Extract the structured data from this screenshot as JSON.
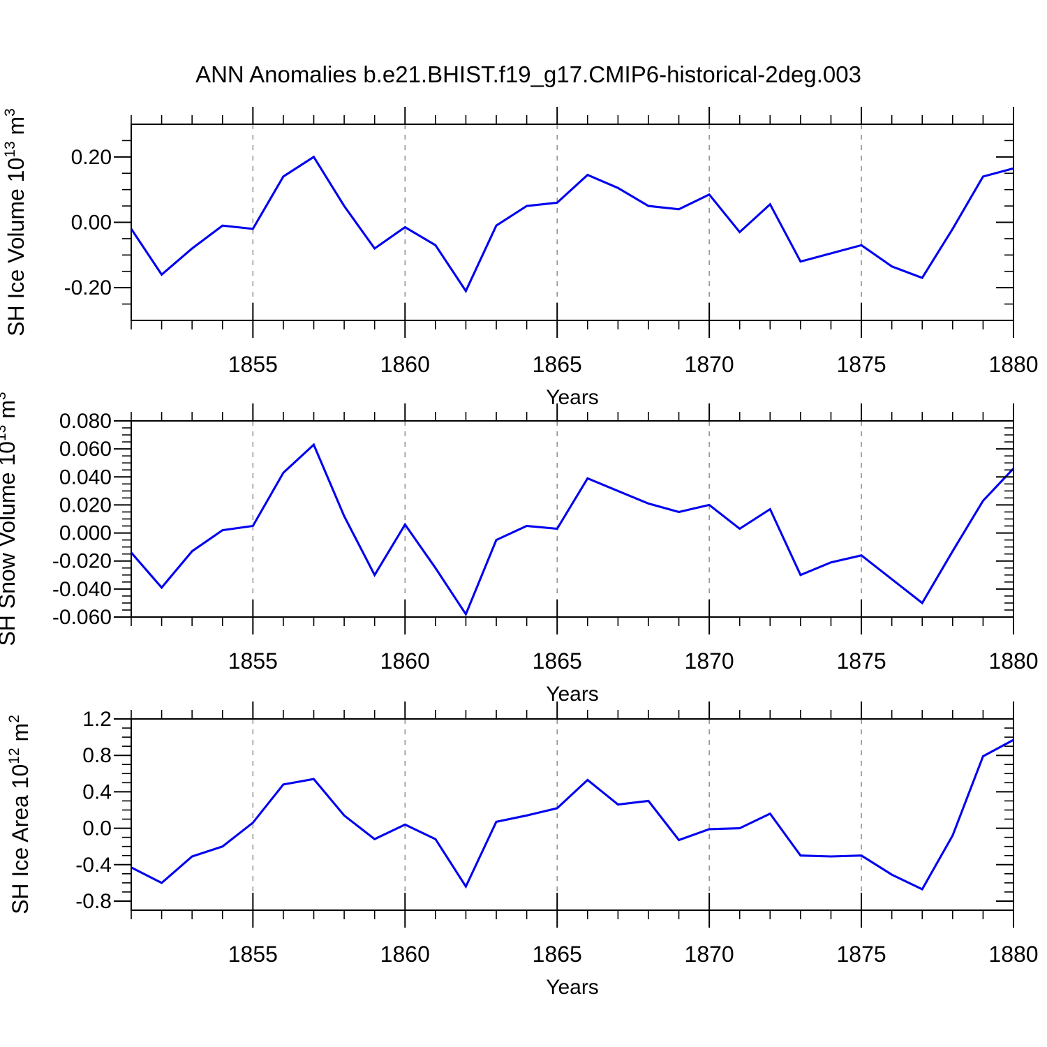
{
  "title": "ANN Anomalies b.e21.BHIST.f19_g17.CMIP6-historical-2deg.003",
  "colors": {
    "line": "#0000f0",
    "frame": "#000000",
    "grid": "#858585",
    "text": "#000000",
    "background": "#ffffff"
  },
  "x_axis": {
    "label": "Years",
    "years_start": 1851,
    "years_end": 1880,
    "tick_labels": [
      "1855",
      "1860",
      "1865",
      "1870",
      "1875",
      "1880"
    ],
    "tick_values": [
      1855,
      1860,
      1865,
      1870,
      1875,
      1880
    ],
    "grid_years": [
      1855,
      1860,
      1865,
      1870,
      1875
    ],
    "minor_step": 1
  },
  "chart_data": [
    {
      "type": "line",
      "name": "sh-ice-volume",
      "legend": "none",
      "grid": "vertical-dashed",
      "ylabel_full": "SH Ice Volume 10^13 m^3",
      "ylabel": {
        "prefix": "SH Ice Volume 10",
        "exponent": "13",
        "unit": " m",
        "unit_exponent": "3"
      },
      "xlabel": "Years",
      "ylim": [
        -0.3,
        0.3
      ],
      "ytick_labels": [
        "0.20",
        "0.00",
        "-0.20"
      ],
      "ytick_values": [
        0.2,
        0.0,
        -0.2
      ],
      "yminor_step": 0.05,
      "x": [
        1851,
        1852,
        1853,
        1854,
        1855,
        1856,
        1857,
        1858,
        1859,
        1860,
        1861,
        1862,
        1863,
        1864,
        1865,
        1866,
        1867,
        1868,
        1869,
        1870,
        1871,
        1872,
        1873,
        1874,
        1875,
        1876,
        1877,
        1878,
        1879,
        1880
      ],
      "values": [
        -0.02,
        -0.16,
        -0.08,
        -0.01,
        -0.02,
        0.14,
        0.2,
        0.05,
        -0.08,
        -0.015,
        -0.07,
        -0.21,
        -0.01,
        0.05,
        0.06,
        0.145,
        0.105,
        0.05,
        0.04,
        0.085,
        -0.03,
        0.055,
        -0.12,
        -0.095,
        -0.07,
        -0.135,
        -0.17,
        -0.02,
        0.14,
        0.165
      ]
    },
    {
      "type": "line",
      "name": "sh-snow-volume",
      "legend": "none",
      "grid": "vertical-dashed",
      "ylabel_full": "SH Snow Volume 10^13 m^3",
      "ylabel": {
        "prefix": "SH Snow Volume 10",
        "exponent": "13",
        "unit": " m",
        "unit_exponent": "3"
      },
      "xlabel": "Years",
      "ylim": [
        -0.06,
        0.08
      ],
      "ytick_labels": [
        "0.080",
        "0.060",
        "0.040",
        "0.020",
        "0.000",
        "-0.020",
        "-0.040",
        "-0.060"
      ],
      "ytick_values": [
        0.08,
        0.06,
        0.04,
        0.02,
        0.0,
        -0.02,
        -0.04,
        -0.06
      ],
      "yminor_step": 0.005,
      "x": [
        1851,
        1852,
        1853,
        1854,
        1855,
        1856,
        1857,
        1858,
        1859,
        1860,
        1861,
        1862,
        1863,
        1864,
        1865,
        1866,
        1867,
        1868,
        1869,
        1870,
        1871,
        1872,
        1873,
        1874,
        1875,
        1876,
        1877,
        1878,
        1879,
        1880
      ],
      "values": [
        -0.014,
        -0.039,
        -0.013,
        0.002,
        0.005,
        0.043,
        0.063,
        0.012,
        -0.03,
        0.006,
        -0.025,
        -0.058,
        -0.005,
        0.005,
        0.003,
        0.039,
        0.03,
        0.021,
        0.015,
        0.02,
        0.003,
        0.017,
        -0.03,
        -0.021,
        -0.016,
        -0.033,
        -0.05,
        -0.013,
        0.023,
        0.046
      ]
    },
    {
      "type": "line",
      "name": "sh-ice-area",
      "legend": "none",
      "grid": "vertical-dashed",
      "ylabel_full": "SH Ice Area 10^12 m^2",
      "ylabel": {
        "prefix": "SH Ice Area 10",
        "exponent": "12",
        "unit": " m",
        "unit_exponent": "2"
      },
      "xlabel": "Years",
      "ylim": [
        -0.9,
        1.2
      ],
      "ytick_labels": [
        "1.2",
        "0.8",
        "0.4",
        "0.0",
        "-0.4",
        "-0.8"
      ],
      "ytick_values": [
        1.2,
        0.8,
        0.4,
        0.0,
        -0.4,
        -0.8
      ],
      "yminor_step": 0.1,
      "x": [
        1851,
        1852,
        1853,
        1854,
        1855,
        1856,
        1857,
        1858,
        1859,
        1860,
        1861,
        1862,
        1863,
        1864,
        1865,
        1866,
        1867,
        1868,
        1869,
        1870,
        1871,
        1872,
        1873,
        1874,
        1875,
        1876,
        1877,
        1878,
        1879,
        1880
      ],
      "values": [
        -0.43,
        -0.6,
        -0.31,
        -0.2,
        0.06,
        0.48,
        0.54,
        0.14,
        -0.12,
        0.04,
        -0.12,
        -0.64,
        0.07,
        0.14,
        0.22,
        0.53,
        0.26,
        0.3,
        -0.13,
        -0.01,
        0.0,
        0.16,
        -0.3,
        -0.31,
        -0.3,
        -0.51,
        -0.67,
        -0.08,
        0.79,
        0.97
      ]
    }
  ]
}
